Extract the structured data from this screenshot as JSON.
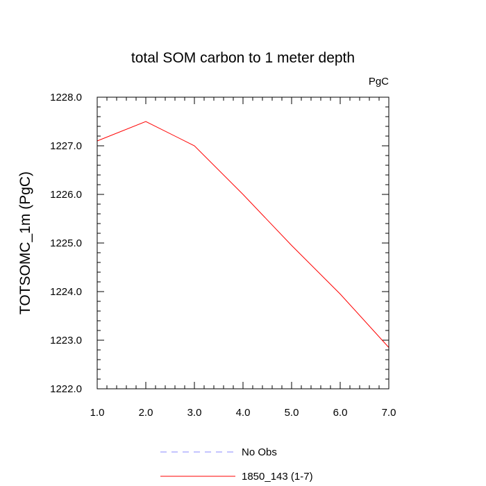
{
  "chart_data": {
    "type": "line",
    "title": "total SOM carbon to 1 meter depth",
    "units_label": "PgC",
    "ylabel": "TOTSOMC_1m  (PgC)",
    "xlabel": "",
    "xlim": [
      1.0,
      7.0
    ],
    "ylim": [
      1222.0,
      1228.0
    ],
    "x_ticks": [
      "1.0",
      "2.0",
      "3.0",
      "4.0",
      "5.0",
      "6.0",
      "7.0"
    ],
    "y_ticks": [
      "1222.0",
      "1223.0",
      "1224.0",
      "1225.0",
      "1226.0",
      "1227.0",
      "1228.0"
    ],
    "grid": false,
    "legend_position": "bottom",
    "series": [
      {
        "name": "No Obs",
        "color": "#8a8aff",
        "dashed": true,
        "x": [],
        "y": []
      },
      {
        "name": "1850_143 (1-7)",
        "color": "#ff0000",
        "dashed": false,
        "x": [
          1,
          2,
          3,
          4,
          5,
          6,
          7
        ],
        "y": [
          1227.1,
          1227.5,
          1227.0,
          1226.0,
          1224.95,
          1223.95,
          1222.85
        ]
      }
    ]
  }
}
